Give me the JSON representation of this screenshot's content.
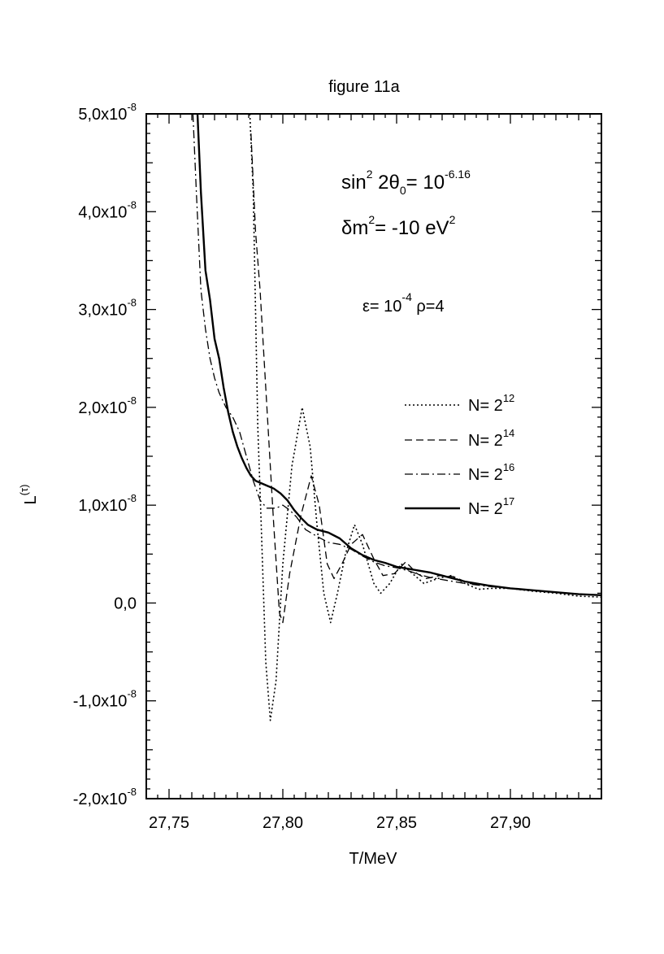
{
  "chart_data": {
    "type": "line",
    "title": "figure 11a",
    "xlabel": "T/MeV",
    "ylabel": {
      "base": "L",
      "sup": "(τ)"
    },
    "xlim": [
      27.74,
      27.94
    ],
    "ylim": [
      -2e-08,
      5e-08
    ],
    "x_ticks": [
      27.75,
      27.8,
      27.85,
      27.9
    ],
    "x_tick_labels": [
      "27,75",
      "27,80",
      "27,85",
      "27,90"
    ],
    "y_ticks": [
      5e-08,
      4e-08,
      3e-08,
      2e-08,
      1e-08,
      0,
      -1e-08,
      -2e-08
    ],
    "y_tick_labels": [
      {
        "base": "5,0x10",
        "exp": "-8"
      },
      {
        "base": "4,0x10",
        "exp": "-8"
      },
      {
        "base": "3,0x10",
        "exp": "-8"
      },
      {
        "base": "2,0x10",
        "exp": "-8"
      },
      {
        "base": "1,0x10",
        "exp": "-8"
      },
      {
        "base": "0,0",
        "exp": ""
      },
      {
        "base": "-1,0x10",
        "exp": "-8"
      },
      {
        "base": "-2,0x10",
        "exp": "-8"
      }
    ],
    "grid": false,
    "legend_position": "right",
    "annotations": [
      {
        "line": 1,
        "parts": [
          {
            "t": "sin",
            "style": "ann"
          },
          {
            "t": "2",
            "style": "sup"
          },
          {
            "t": " 2θ",
            "style": "ann"
          },
          {
            "t": "0",
            "style": "sub"
          },
          {
            "t": "= 10",
            "style": "ann"
          },
          {
            "t": "-6.16",
            "style": "sup"
          }
        ]
      },
      {
        "line": 2,
        "parts": [
          {
            "t": "δm",
            "style": "ann"
          },
          {
            "t": "2",
            "style": "sup"
          },
          {
            "t": "= -10 eV",
            "style": "ann"
          },
          {
            "t": "2",
            "style": "sup"
          }
        ]
      },
      {
        "line": 3,
        "parts": [
          {
            "t": "ε= 10",
            "style": "small"
          },
          {
            "t": "-4",
            "style": "sup"
          },
          {
            "t": "    ρ=4",
            "style": "small"
          }
        ]
      }
    ],
    "series": [
      {
        "name": {
          "base": "N= 2",
          "exp": "12"
        },
        "dash": "dotted",
        "points": [
          [
            27.7855,
            5e-08
          ],
          [
            27.787,
            4.2e-08
          ],
          [
            27.789,
            1.8e-08
          ],
          [
            27.7905,
            8e-09
          ],
          [
            27.7925,
            -6e-09
          ],
          [
            27.7945,
            -1.2e-08
          ],
          [
            27.797,
            -8e-09
          ],
          [
            27.8,
            4e-09
          ],
          [
            27.804,
            1.4e-08
          ],
          [
            27.8085,
            2e-08
          ],
          [
            27.812,
            1.6e-08
          ],
          [
            27.815,
            8e-09
          ],
          [
            27.818,
            1e-09
          ],
          [
            27.821,
            -2e-09
          ],
          [
            27.824,
            1e-09
          ],
          [
            27.8275,
            5e-09
          ],
          [
            27.8315,
            8e-09
          ],
          [
            27.835,
            6e-09
          ],
          [
            27.84,
            2e-09
          ],
          [
            27.843,
            1e-09
          ],
          [
            27.847,
            2e-09
          ],
          [
            27.852,
            4e-09
          ],
          [
            27.857,
            3e-09
          ],
          [
            27.862,
            2e-09
          ],
          [
            27.868,
            2.5e-09
          ],
          [
            27.874,
            2.8e-09
          ],
          [
            27.88,
            2e-09
          ],
          [
            27.886,
            1.4e-09
          ],
          [
            27.892,
            1.5e-09
          ],
          [
            27.9,
            1.5e-09
          ],
          [
            27.91,
            1.2e-09
          ],
          [
            27.92,
            1e-09
          ],
          [
            27.93,
            7e-10
          ],
          [
            27.94,
            6e-10
          ]
        ]
      },
      {
        "name": {
          "base": "N= 2",
          "exp": "14"
        },
        "dash": "dashed",
        "points": [
          [
            27.786,
            4.8e-08
          ],
          [
            27.788,
            3.8e-08
          ],
          [
            27.79,
            3.2e-08
          ],
          [
            27.793,
            2e-08
          ],
          [
            27.796,
            8e-09
          ],
          [
            27.7985,
            -1e-09
          ],
          [
            27.8,
            -2e-09
          ],
          [
            27.803,
            3e-09
          ],
          [
            27.808,
            9e-09
          ],
          [
            27.8125,
            1.3e-08
          ],
          [
            27.816,
            1e-08
          ],
          [
            27.8195,
            4e-09
          ],
          [
            27.8225,
            2.5e-09
          ],
          [
            27.826,
            4e-09
          ],
          [
            27.83,
            6e-09
          ],
          [
            27.835,
            7e-09
          ],
          [
            27.84,
            4.5e-09
          ],
          [
            27.844,
            2.8e-09
          ],
          [
            27.849,
            3e-09
          ],
          [
            27.854,
            4.2e-09
          ],
          [
            27.859,
            3e-09
          ],
          [
            27.863,
            2.5e-09
          ],
          [
            27.869,
            2.8e-09
          ],
          [
            27.875,
            2.7e-09
          ],
          [
            27.882,
            2e-09
          ],
          [
            27.89,
            1.8e-09
          ],
          [
            27.9,
            1.5e-09
          ],
          [
            27.91,
            1.3e-09
          ],
          [
            27.92,
            1.1e-09
          ],
          [
            27.93,
            9e-10
          ],
          [
            27.94,
            8e-10
          ]
        ]
      },
      {
        "name": {
          "base": "N= 2",
          "exp": "16"
        },
        "dash": "dashdot",
        "points": [
          [
            27.7605,
            5e-08
          ],
          [
            27.762,
            4.2e-08
          ],
          [
            27.764,
            3.2e-08
          ],
          [
            27.766,
            2.8e-08
          ],
          [
            27.768,
            2.5e-08
          ],
          [
            27.77,
            2.3e-08
          ],
          [
            27.772,
            2.15e-08
          ],
          [
            27.775,
            2e-08
          ],
          [
            27.778,
            1.9e-08
          ],
          [
            27.781,
            1.75e-08
          ],
          [
            27.784,
            1.5e-08
          ],
          [
            27.787,
            1.25e-08
          ],
          [
            27.79,
            1.05e-08
          ],
          [
            27.793,
            9.7e-09
          ],
          [
            27.797,
            9.7e-09
          ],
          [
            27.8,
            1e-08
          ],
          [
            27.803,
            9.5e-09
          ],
          [
            27.806,
            8.8e-09
          ],
          [
            27.81,
            7.5e-09
          ],
          [
            27.815,
            6.8e-09
          ],
          [
            27.82,
            6.2e-09
          ],
          [
            27.825,
            6e-09
          ],
          [
            27.83,
            5.5e-09
          ],
          [
            27.835,
            4.8e-09
          ],
          [
            27.84,
            4.2e-09
          ],
          [
            27.845,
            3.8e-09
          ],
          [
            27.85,
            3.6e-09
          ],
          [
            27.855,
            3.3e-09
          ],
          [
            27.86,
            2.9e-09
          ],
          [
            27.865,
            2.6e-09
          ],
          [
            27.87,
            2.4e-09
          ],
          [
            27.875,
            2.2e-09
          ],
          [
            27.88,
            2e-09
          ],
          [
            27.89,
            1.7e-09
          ],
          [
            27.9,
            1.5e-09
          ],
          [
            27.91,
            1.3e-09
          ],
          [
            27.92,
            1.1e-09
          ],
          [
            27.93,
            9e-10
          ],
          [
            27.94,
            8e-10
          ]
        ]
      },
      {
        "name": {
          "base": "N= 2",
          "exp": "17"
        },
        "dash": "solid",
        "points": [
          [
            27.7625,
            5e-08
          ],
          [
            27.764,
            4.2e-08
          ],
          [
            27.766,
            3.4e-08
          ],
          [
            27.768,
            3.1e-08
          ],
          [
            27.77,
            2.7e-08
          ],
          [
            27.772,
            2.5e-08
          ],
          [
            27.774,
            2.2e-08
          ],
          [
            27.776,
            1.95e-08
          ],
          [
            27.778,
            1.75e-08
          ],
          [
            27.78,
            1.6e-08
          ],
          [
            27.782,
            1.48e-08
          ],
          [
            27.784,
            1.38e-08
          ],
          [
            27.786,
            1.3e-08
          ],
          [
            27.788,
            1.25e-08
          ],
          [
            27.79,
            1.23e-08
          ],
          [
            27.793,
            1.2e-08
          ],
          [
            27.796,
            1.17e-08
          ],
          [
            27.799,
            1.12e-08
          ],
          [
            27.802,
            1.05e-08
          ],
          [
            27.805,
            9.5e-09
          ],
          [
            27.808,
            8.7e-09
          ],
          [
            27.811,
            8e-09
          ],
          [
            27.815,
            7.5e-09
          ],
          [
            27.82,
            7.2e-09
          ],
          [
            27.825,
            6.6e-09
          ],
          [
            27.83,
            5.6e-09
          ],
          [
            27.835,
            4.9e-09
          ],
          [
            27.84,
            4.4e-09
          ],
          [
            27.845,
            4.1e-09
          ],
          [
            27.85,
            3.7e-09
          ],
          [
            27.855,
            3.5e-09
          ],
          [
            27.86,
            3.3e-09
          ],
          [
            27.865,
            3.1e-09
          ],
          [
            27.87,
            2.8e-09
          ],
          [
            27.875,
            2.5e-09
          ],
          [
            27.88,
            2.2e-09
          ],
          [
            27.89,
            1.8e-09
          ],
          [
            27.9,
            1.5e-09
          ],
          [
            27.91,
            1.3e-09
          ],
          [
            27.92,
            1.1e-09
          ],
          [
            27.93,
            9e-10
          ],
          [
            27.94,
            8e-10
          ]
        ]
      }
    ]
  }
}
